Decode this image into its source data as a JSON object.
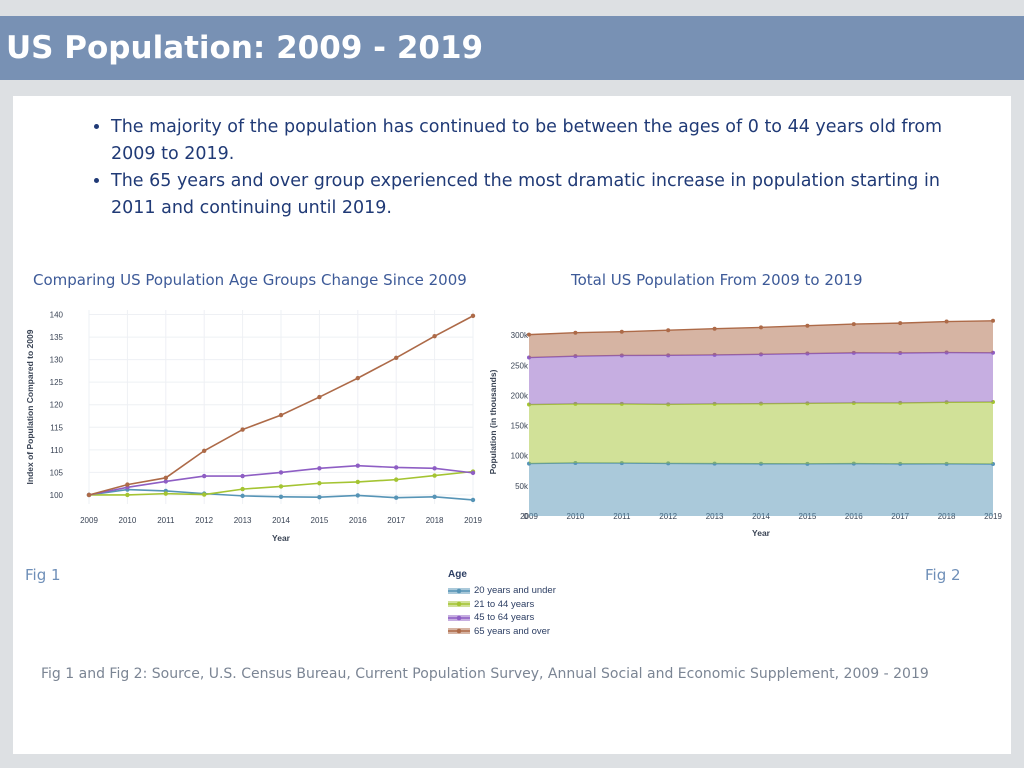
{
  "header": {
    "title": "US Population: 2009 - 2019"
  },
  "bullets": [
    "The majority of the population has continued to be between the ages of 0 to 44 years old from 2009 to 2019.",
    "The 65 years and over group experienced the most dramatic increase in population starting in 2011 and continuing until 2019."
  ],
  "figures": {
    "fig1_label": "Fig 1",
    "fig2_label": "Fig 2"
  },
  "legend": {
    "title": "Age",
    "items": [
      "20 years and under",
      "21 to 44 years",
      "45 to 64 years",
      "65 years and over"
    ]
  },
  "source": "Fig 1 and Fig 2: Source, U.S. Census Bureau, Current Population Survey, Annual Social and Economic Supplement, 2009 - 2019",
  "colors": {
    "under20": "#5694b6",
    "age21_44": "#a4c432",
    "age45_64": "#8e5ec4",
    "over65": "#ad6a48"
  },
  "chart_data": [
    {
      "type": "line",
      "title": "Comparing US Population Age Groups Change Since 2009",
      "xlabel": "Year",
      "ylabel": "Index of Population Compared to 2009",
      "x": [
        2009,
        2010,
        2011,
        2012,
        2013,
        2014,
        2015,
        2016,
        2017,
        2018,
        2019
      ],
      "ylim": [
        98,
        141
      ],
      "yticks": [
        100,
        105,
        110,
        115,
        120,
        125,
        130,
        135,
        140
      ],
      "grid": true,
      "series": [
        {
          "name": "20 years and under",
          "values": [
            100,
            101.2,
            100.9,
            100.3,
            99.8,
            99.6,
            99.5,
            99.9,
            99.4,
            99.6,
            98.9
          ]
        },
        {
          "name": "21 to 44 years",
          "values": [
            100,
            100,
            100.3,
            100.1,
            101.3,
            101.9,
            102.6,
            102.9,
            103.4,
            104.3,
            105.2
          ]
        },
        {
          "name": "45 to 64 years",
          "values": [
            100,
            101.7,
            103,
            104.2,
            104.2,
            105,
            105.9,
            106.5,
            106.1,
            105.9,
            104.9
          ]
        },
        {
          "name": "65 years and over",
          "values": [
            100,
            102.3,
            103.8,
            109.8,
            114.5,
            117.7,
            121.7,
            125.9,
            130.4,
            135.2,
            139.7
          ]
        }
      ]
    },
    {
      "type": "area",
      "stacked": true,
      "title": "Total US Population From 2009 to 2019",
      "xlabel": "Year",
      "ylabel": "Population (in thousands)",
      "x": [
        2009,
        2010,
        2011,
        2012,
        2013,
        2014,
        2015,
        2016,
        2017,
        2018,
        2019
      ],
      "ylim": [
        0,
        312000
      ],
      "yticks": [
        0,
        50000,
        100000,
        150000,
        200000,
        250000,
        300000
      ],
      "ytick_labels": [
        "0",
        "50k",
        "100k",
        "150k",
        "200k",
        "250k",
        "300k"
      ],
      "grid": false,
      "series": [
        {
          "name": "20 years and under",
          "values": [
            87000,
            88000,
            87800,
            87300,
            86900,
            86700,
            86600,
            86900,
            86500,
            86600,
            86200
          ]
        },
        {
          "name": "21 to 44 years",
          "values": [
            98000,
            98000,
            98200,
            98000,
            99100,
            99700,
            100400,
            100700,
            101200,
            102100,
            102900
          ]
        },
        {
          "name": "45 to 64 years",
          "values": [
            78000,
            79300,
            80400,
            81300,
            81300,
            81900,
            82600,
            83100,
            82800,
            82600,
            81800
          ]
        },
        {
          "name": "65 years and over",
          "values": [
            38000,
            38900,
            39400,
            41700,
            43500,
            44700,
            46200,
            47800,
            49600,
            51400,
            53100
          ]
        }
      ]
    }
  ]
}
